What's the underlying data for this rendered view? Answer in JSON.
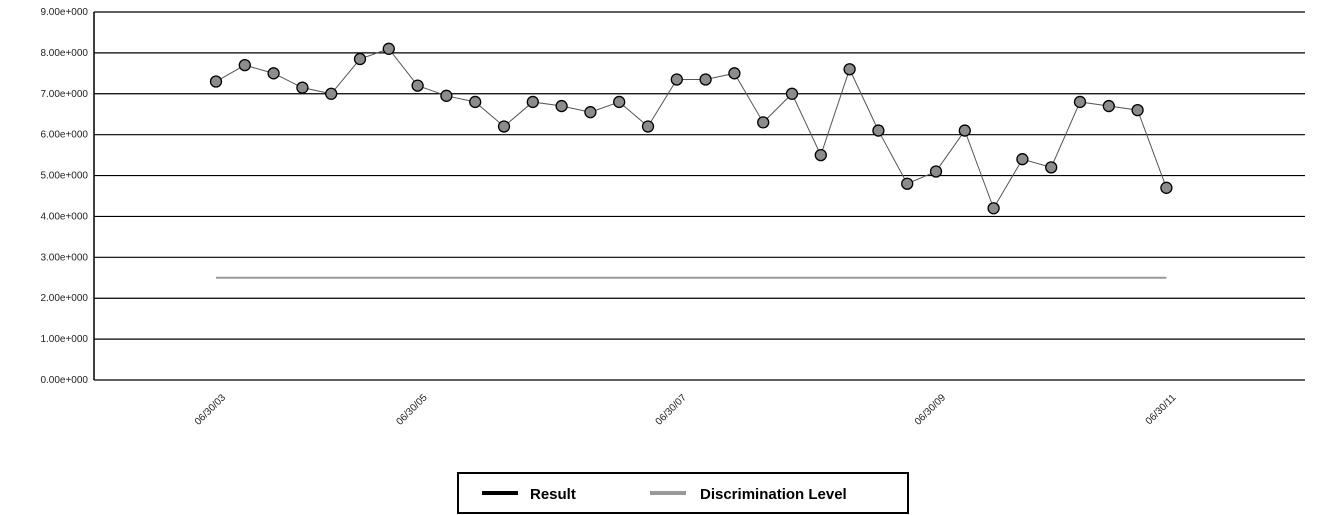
{
  "chart_data": {
    "type": "line",
    "title": "",
    "xlabel": "",
    "ylabel": "",
    "ylim": [
      0,
      9
    ],
    "y_ticks": [
      {
        "value": 0,
        "label": "0.00e+000"
      },
      {
        "value": 1,
        "label": "1.00e+000"
      },
      {
        "value": 2,
        "label": "2.00e+000"
      },
      {
        "value": 3,
        "label": "3.00e+000"
      },
      {
        "value": 4,
        "label": "4.00e+000"
      },
      {
        "value": 5,
        "label": "5.00e+000"
      },
      {
        "value": 6,
        "label": "6.00e+000"
      },
      {
        "value": 7,
        "label": "7.00e+000"
      },
      {
        "value": 8,
        "label": "8.00e+000"
      },
      {
        "value": 9,
        "label": "9.00e+000"
      }
    ],
    "x_ticks": [
      {
        "index": 0,
        "label": "06/30/03"
      },
      {
        "index": 7,
        "label": "06/30/05"
      },
      {
        "index": 16,
        "label": "06/30/07"
      },
      {
        "index": 25,
        "label": "06/30/09"
      },
      {
        "index": 33,
        "label": "06/30/11"
      }
    ],
    "grid": "horizontal",
    "legend_position": "bottom-center",
    "series": [
      {
        "name": "Result",
        "color": "#000000",
        "marker_color": "#8c8c8c",
        "values": [
          7.3,
          7.7,
          7.5,
          7.15,
          7.0,
          7.85,
          8.1,
          7.2,
          6.95,
          6.8,
          6.2,
          6.8,
          6.7,
          6.55,
          6.8,
          6.2,
          7.35,
          7.35,
          7.5,
          6.3,
          7.0,
          5.5,
          7.6,
          6.1,
          4.8,
          5.1,
          6.1,
          4.2,
          5.4,
          5.2,
          6.8,
          6.7,
          6.6,
          4.7
        ]
      },
      {
        "name": "Discrimination Level",
        "color": "#999999",
        "values": [
          2.5,
          2.5,
          2.5,
          2.5,
          2.5,
          2.5,
          2.5,
          2.5,
          2.5,
          2.5,
          2.5,
          2.5,
          2.5,
          2.5,
          2.5,
          2.5,
          2.5,
          2.5,
          2.5,
          2.5,
          2.5,
          2.5,
          2.5,
          2.5,
          2.5,
          2.5,
          2.5,
          2.5,
          2.5,
          2.5,
          2.5,
          2.5,
          2.5,
          2.5
        ]
      }
    ]
  }
}
